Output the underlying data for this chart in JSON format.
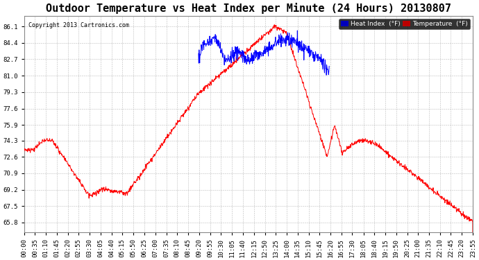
{
  "title": "Outdoor Temperature vs Heat Index per Minute (24 Hours) 20130807",
  "copyright": "Copyright 2013 Cartronics.com",
  "y_ticks": [
    65.8,
    67.5,
    69.2,
    70.9,
    72.6,
    74.3,
    75.9,
    77.6,
    79.3,
    81.0,
    82.7,
    84.4,
    86.1
  ],
  "ylim": [
    64.8,
    87.2
  ],
  "x_labels": [
    "00:00",
    "00:35",
    "01:10",
    "01:45",
    "02:20",
    "02:55",
    "03:30",
    "04:05",
    "04:40",
    "05:15",
    "05:50",
    "06:25",
    "07:00",
    "07:35",
    "08:10",
    "08:45",
    "09:20",
    "09:55",
    "10:30",
    "11:05",
    "11:40",
    "12:15",
    "12:50",
    "13:25",
    "14:00",
    "14:35",
    "15:10",
    "15:45",
    "16:20",
    "16:55",
    "17:30",
    "18:05",
    "18:40",
    "19:15",
    "19:50",
    "20:25",
    "21:00",
    "21:35",
    "22:10",
    "22:45",
    "23:20",
    "23:55"
  ],
  "temp_color": "#FF0000",
  "heat_color": "#0000FF",
  "background_color": "#FFFFFF",
  "grid_color": "#BBBBBB",
  "legend_heat_bg": "#0000BB",
  "legend_temp_bg": "#BB0000",
  "title_fontsize": 11,
  "tick_fontsize": 6.5,
  "n_points": 1440
}
